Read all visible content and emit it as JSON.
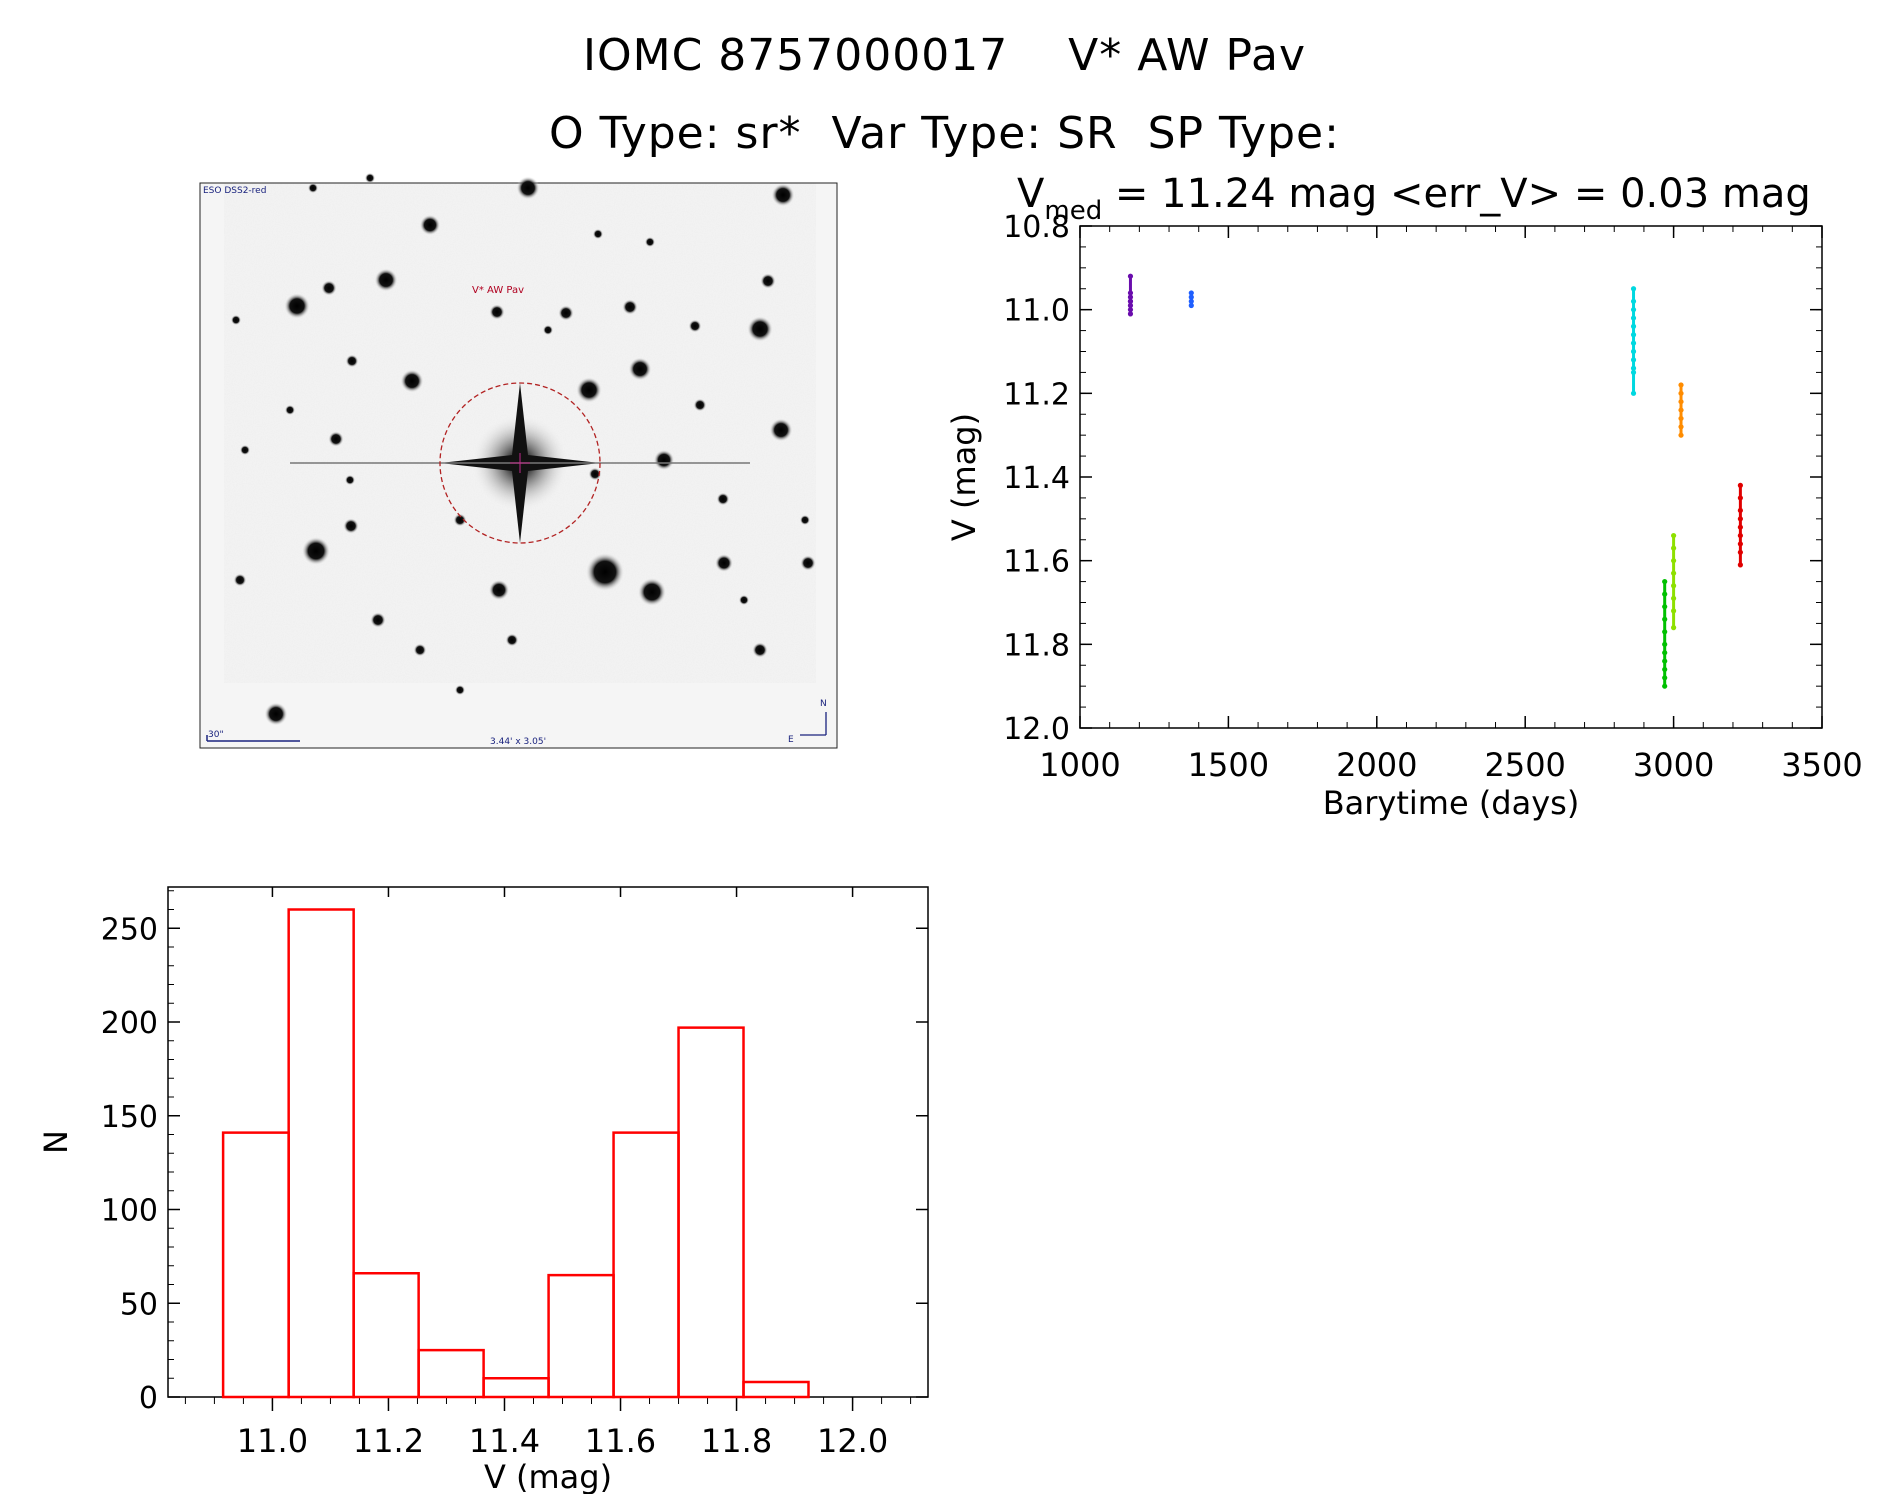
{
  "header": {
    "title_line1": "IOMC 8757000017    V* AW Pav",
    "title_line2": "O Type: sr*  Var Type: SR  SP Type:"
  },
  "finder": {
    "survey_label": "ESO DSS2-red",
    "target_label": "V* AW Pav",
    "scale_label": "30\"",
    "fov_label": "3.44' x 3.05'",
    "north_label": "N",
    "east_label": "E",
    "circle_color": "#c0392b"
  },
  "chart_data": [
    {
      "type": "scatter",
      "title_prefix": "V",
      "title_sub": "med",
      "title_rest": " = 11.24 mag <err_V> = 0.03 mag",
      "xlabel": "Barytime (days)",
      "ylabel": "V (mag)",
      "xlim": [
        1000,
        3500
      ],
      "ylim": [
        12.0,
        10.8
      ],
      "y_inverted": true,
      "xticks": [
        1000,
        1500,
        2000,
        2500,
        3000,
        3500
      ],
      "yticks": [
        10.8,
        11.0,
        11.2,
        11.4,
        11.6,
        11.8,
        12.0
      ],
      "series": [
        {
          "color": "#6a0dad",
          "x": [
            1170,
            1170,
            1170,
            1170,
            1170,
            1170,
            1170,
            1170
          ],
          "y": [
            10.92,
            10.96,
            10.97,
            10.98,
            10.99,
            11.0,
            11.01,
            10.98
          ]
        },
        {
          "color": "#1f5fff",
          "x": [
            1375,
            1375,
            1375,
            1375
          ],
          "y": [
            10.96,
            10.97,
            10.98,
            10.99
          ]
        },
        {
          "color": "#00d8e0",
          "x": [
            2865,
            2865,
            2865,
            2865,
            2865,
            2865,
            2865,
            2865,
            2865,
            2865,
            2865,
            2865
          ],
          "y": [
            10.95,
            10.98,
            11.0,
            11.02,
            11.04,
            11.06,
            11.08,
            11.1,
            11.12,
            11.14,
            11.15,
            11.2
          ]
        },
        {
          "color": "#00c000",
          "x": [
            2970,
            2970,
            2970,
            2970,
            2970,
            2970,
            2970,
            2970,
            2970,
            2970,
            2970
          ],
          "y": [
            11.65,
            11.68,
            11.71,
            11.74,
            11.77,
            11.8,
            11.82,
            11.84,
            11.86,
            11.88,
            11.9
          ]
        },
        {
          "color": "#8ee000",
          "x": [
            3000,
            3000,
            3000,
            3000,
            3000,
            3000,
            3000,
            3000
          ],
          "y": [
            11.54,
            11.57,
            11.6,
            11.63,
            11.66,
            11.69,
            11.72,
            11.76
          ]
        },
        {
          "color": "#ff8c00",
          "x": [
            3025,
            3025,
            3025,
            3025,
            3025,
            3025,
            3025
          ],
          "y": [
            11.18,
            11.2,
            11.22,
            11.24,
            11.26,
            11.28,
            11.3
          ]
        },
        {
          "color": "#e00000",
          "x": [
            3225,
            3225,
            3225,
            3225,
            3225,
            3225,
            3225,
            3225,
            3225
          ],
          "y": [
            11.42,
            11.45,
            11.48,
            11.5,
            11.52,
            11.54,
            11.56,
            11.58,
            11.61
          ]
        }
      ]
    },
    {
      "type": "bar",
      "xlabel": "V (mag)",
      "ylabel": "N",
      "xlim": [
        10.82,
        12.13
      ],
      "ylim": [
        0,
        272
      ],
      "xticks": [
        "11.0",
        "11.2",
        "11.4",
        "11.6",
        "11.8",
        "12.0"
      ],
      "yticks": [
        0,
        50,
        100,
        150,
        200,
        250
      ],
      "bin_edges": [
        10.915,
        11.028,
        11.14,
        11.252,
        11.364,
        11.476,
        11.588,
        11.7,
        11.812,
        11.924
      ],
      "values": [
        141,
        260,
        66,
        25,
        10,
        65,
        141,
        197,
        8
      ],
      "color": "#ff0000"
    }
  ]
}
